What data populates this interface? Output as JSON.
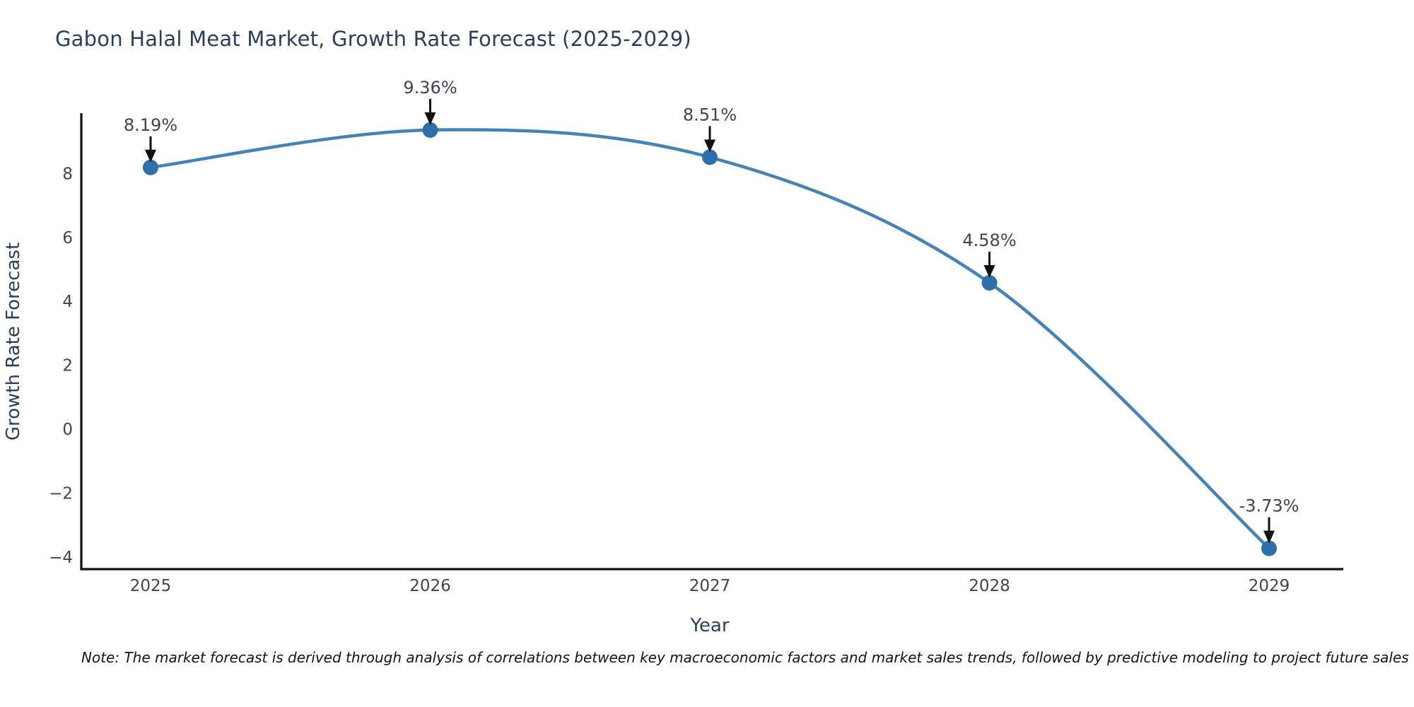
{
  "header": {
    "title": "Gabon Halal Meat Market, Growth Rate Forecast (2025-2029)"
  },
  "footer": {
    "note": "Note: The market forecast is derived through analysis of correlations between key macroeconomic factors and market sales trends, followed by predictive modeling to project future sales"
  },
  "colors": {
    "line": "#4583b6",
    "marker": "#2e6fab",
    "axis": "#111111",
    "arrow": "#111111",
    "annotation_text": "#3e4552",
    "tick_text": "#3e4552",
    "axis_title_text": "#2a3f5f",
    "title_text": "#2a3f5f"
  },
  "chart_data": {
    "type": "line",
    "title": "Gabon Halal Meat Market, Growth Rate Forecast (2025-2029)",
    "xlabel": "Year",
    "ylabel": "Growth Rate Forecast",
    "categories": [
      "2025",
      "2026",
      "2027",
      "2028",
      "2029"
    ],
    "values": [
      8.19,
      9.36,
      8.51,
      4.58,
      -3.73
    ],
    "point_labels": [
      "8.19%",
      "9.36%",
      "8.51%",
      "4.58%",
      "-3.73%"
    ],
    "yticks": [
      {
        "value": -4,
        "label": "−4"
      },
      {
        "value": -2,
        "label": "−2"
      },
      {
        "value": 0,
        "label": "0"
      },
      {
        "value": 2,
        "label": "2"
      },
      {
        "value": 4,
        "label": "4"
      },
      {
        "value": 6,
        "label": "6"
      },
      {
        "value": 8,
        "label": "8"
      }
    ],
    "ylim": [
      -4.4,
      9.9
    ],
    "line_shape": "spline",
    "markers": true,
    "grid": false,
    "legend": "none"
  }
}
